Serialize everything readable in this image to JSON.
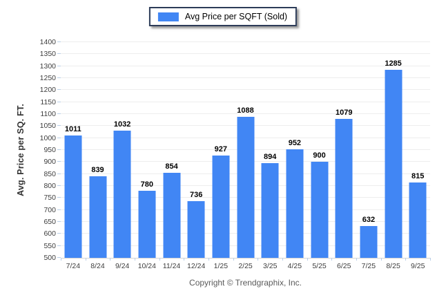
{
  "chart_data": {
    "type": "bar",
    "legend_label": "Avg Price per SQFT (Sold)",
    "categories": [
      "7/24",
      "8/24",
      "9/24",
      "10/24",
      "11/24",
      "12/24",
      "1/25",
      "2/25",
      "3/25",
      "4/25",
      "5/25",
      "6/25",
      "7/25",
      "8/25",
      "9/25"
    ],
    "values": [
      1011,
      839,
      1032,
      780,
      854,
      736,
      927,
      1088,
      894,
      952,
      900,
      1079,
      632,
      1285,
      815
    ],
    "xlabel": "",
    "ylabel": "Avg. Price per SQ. FT.",
    "ylim": [
      500,
      1400
    ],
    "ytick_step": 50,
    "grid": true,
    "legend_position": "top-center",
    "bar_color": "#4186f4"
  },
  "footer": {
    "copyright": "Copyright © Trendgraphix, Inc."
  },
  "colors": {
    "bar": "#4186f4",
    "gridline": "#ededed",
    "axis_line": "#d4d4d4",
    "tick_mark": "#b9cfe8",
    "tick_text": "#3c3c3c",
    "legend_border": "#2c3b58",
    "footer_text": "#5a5a5a"
  }
}
